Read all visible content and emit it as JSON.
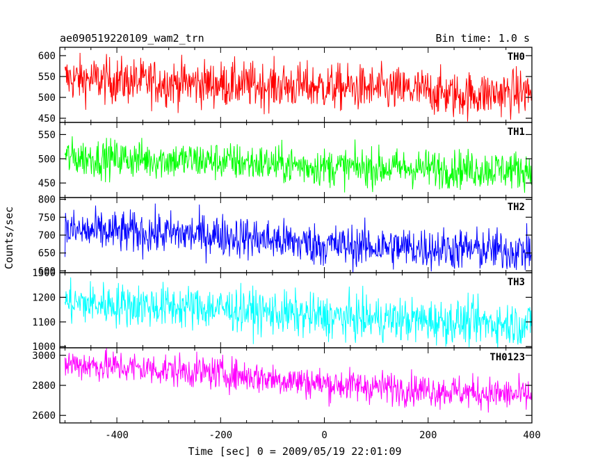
{
  "chart_data": {
    "type": "line",
    "title_left": "ae090519220109_wam2_trn",
    "title_right": "Bin time: 1.0 s",
    "xlabel": "Time [sec] 0 = 2009/05/19 22:01:09",
    "ylabel": "Counts/sec",
    "xlim": [
      -510,
      400
    ],
    "xticks": [
      -400,
      -200,
      0,
      200,
      400
    ],
    "x_range": [
      -500,
      399
    ],
    "grid": false,
    "panels": [
      {
        "name": "TH0",
        "color": "#ff0000",
        "ylim": [
          440,
          620
        ],
        "yticks": [
          450,
          500,
          550,
          600
        ],
        "trend": [
          [
            -500,
            545
          ],
          [
            -300,
            535
          ],
          [
            0,
            525
          ],
          [
            200,
            515
          ],
          [
            250,
            505
          ],
          [
            399,
            513
          ]
        ],
        "noise": 28
      },
      {
        "name": "TH1",
        "color": "#00ff00",
        "ylim": [
          420,
          575
        ],
        "yticks": [
          450,
          500,
          550
        ],
        "trend": [
          [
            -500,
            503
          ],
          [
            -200,
            495
          ],
          [
            0,
            483
          ],
          [
            399,
            477
          ]
        ],
        "noise": 20
      },
      {
        "name": "TH2",
        "color": "#0000ff",
        "ylim": [
          595,
          805
        ],
        "yticks": [
          600,
          650,
          700,
          750,
          800
        ],
        "trend": [
          [
            -500,
            712
          ],
          [
            -200,
            700
          ],
          [
            0,
            672
          ],
          [
            399,
            655
          ]
        ],
        "noise": 30
      },
      {
        "name": "TH3",
        "color": "#00ffff",
        "ylim": [
          995,
          1300
        ],
        "yticks": [
          1000,
          1100,
          1200,
          1300
        ],
        "trend": [
          [
            -500,
            1178
          ],
          [
            -200,
            1155
          ],
          [
            0,
            1120
          ],
          [
            399,
            1090
          ]
        ],
        "noise": 45
      },
      {
        "name": "TH0123",
        "color": "#ff00ff",
        "ylim": [
          2550,
          3050
        ],
        "yticks": [
          2600,
          2800,
          3000
        ],
        "trend": [
          [
            -500,
            2945
          ],
          [
            -200,
            2880
          ],
          [
            0,
            2810
          ],
          [
            399,
            2730
          ]
        ],
        "noise": 55
      }
    ]
  }
}
